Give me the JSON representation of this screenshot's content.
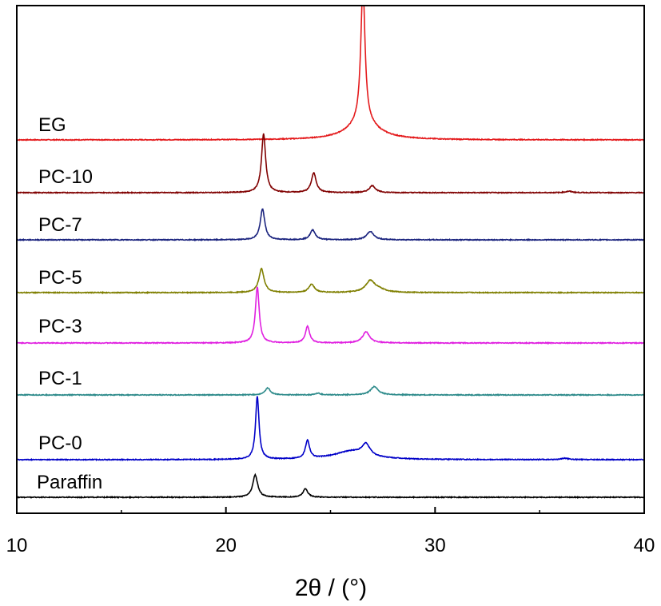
{
  "chart_data": {
    "type": "line",
    "title": "",
    "xlabel": "2θ / (°)",
    "ylabel": "",
    "xlim": [
      10,
      40
    ],
    "x_ticks": [
      10,
      20,
      30,
      40
    ],
    "grid": false,
    "legend": "none (series labels printed above each trace)",
    "stacked_offsets": true,
    "series": [
      {
        "name": "EG",
        "color": "#e41a1c",
        "baseline": 0,
        "peaks": [
          {
            "x": 26.55,
            "h": 1.0,
            "w": 0.12
          },
          {
            "x": 26.55,
            "h": 0.12,
            "w": 0.9
          }
        ]
      },
      {
        "name": "PC-10",
        "color": "#800000",
        "baseline": 0,
        "peaks": [
          {
            "x": 21.8,
            "h": 0.42,
            "w": 0.12
          },
          {
            "x": 24.2,
            "h": 0.14,
            "w": 0.14
          },
          {
            "x": 27.0,
            "h": 0.05,
            "w": 0.18
          },
          {
            "x": 36.4,
            "h": 0.01,
            "w": 0.2
          }
        ]
      },
      {
        "name": "PC-7",
        "color": "#1a237e",
        "baseline": 0,
        "peaks": [
          {
            "x": 21.75,
            "h": 0.22,
            "w": 0.13
          },
          {
            "x": 24.15,
            "h": 0.07,
            "w": 0.15
          },
          {
            "x": 26.9,
            "h": 0.06,
            "w": 0.2
          }
        ]
      },
      {
        "name": "PC-5",
        "color": "#7f7f00",
        "baseline": 0,
        "peaks": [
          {
            "x": 21.7,
            "h": 0.17,
            "w": 0.15
          },
          {
            "x": 24.1,
            "h": 0.06,
            "w": 0.16
          },
          {
            "x": 26.9,
            "h": 0.08,
            "w": 0.26
          },
          {
            "x": 27.3,
            "h": 0.02,
            "w": 0.4
          }
        ]
      },
      {
        "name": "PC-3",
        "color": "#e020e0",
        "baseline": 0,
        "peaks": [
          {
            "x": 21.5,
            "h": 0.4,
            "w": 0.11
          },
          {
            "x": 23.9,
            "h": 0.12,
            "w": 0.12
          },
          {
            "x": 26.7,
            "h": 0.08,
            "w": 0.2
          }
        ]
      },
      {
        "name": "PC-1",
        "color": "#2e8b8b",
        "baseline": 0,
        "peaks": [
          {
            "x": 22.0,
            "h": 0.05,
            "w": 0.15
          },
          {
            "x": 24.4,
            "h": 0.012,
            "w": 0.15
          },
          {
            "x": 27.1,
            "h": 0.06,
            "w": 0.22
          }
        ]
      },
      {
        "name": "PC-0",
        "color": "#0000c8",
        "baseline": 0,
        "peaks": [
          {
            "x": 21.5,
            "h": 0.45,
            "w": 0.1
          },
          {
            "x": 23.9,
            "h": 0.13,
            "w": 0.12
          },
          {
            "x": 26.7,
            "h": 0.08,
            "w": 0.22
          },
          {
            "x": 26.0,
            "h": 0.06,
            "w": 1.0
          },
          {
            "x": 36.2,
            "h": 0.01,
            "w": 0.2
          }
        ]
      },
      {
        "name": "Paraffin",
        "color": "#000000",
        "baseline": 0,
        "peaks": [
          {
            "x": 21.4,
            "h": 0.16,
            "w": 0.14
          },
          {
            "x": 23.8,
            "h": 0.06,
            "w": 0.14
          }
        ]
      }
    ]
  }
}
